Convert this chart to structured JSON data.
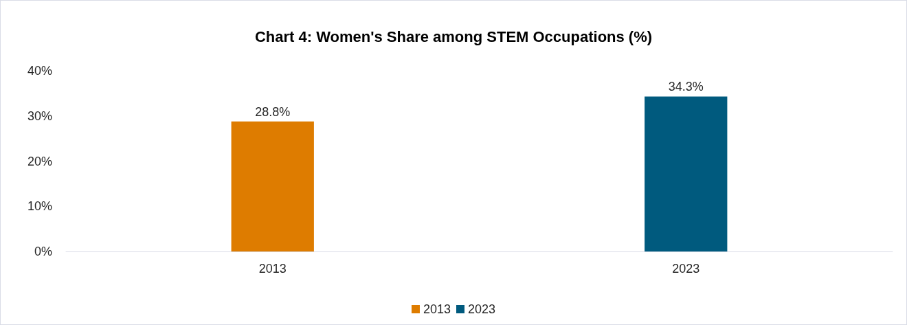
{
  "chart_data": {
    "type": "bar",
    "title": "Chart 4: Women's Share among STEM Occupations (%)",
    "categories": [
      "2013",
      "2023"
    ],
    "series": [
      {
        "name": "2013",
        "color": "#de7c00",
        "values": [
          28.8,
          null
        ],
        "value_labels": [
          "28.8%",
          null
        ]
      },
      {
        "name": "2023",
        "color": "#005a7e",
        "values": [
          null,
          34.3
        ],
        "value_labels": [
          null,
          "34.3%"
        ]
      }
    ],
    "ylim": [
      0,
      40
    ],
    "yticks": [
      {
        "value": 0,
        "label": "0%"
      },
      {
        "value": 10,
        "label": "10%"
      },
      {
        "value": 20,
        "label": "20%"
      },
      {
        "value": 30,
        "label": "30%"
      },
      {
        "value": 40,
        "label": "40%"
      }
    ],
    "grid": false,
    "legend": "bottom"
  }
}
